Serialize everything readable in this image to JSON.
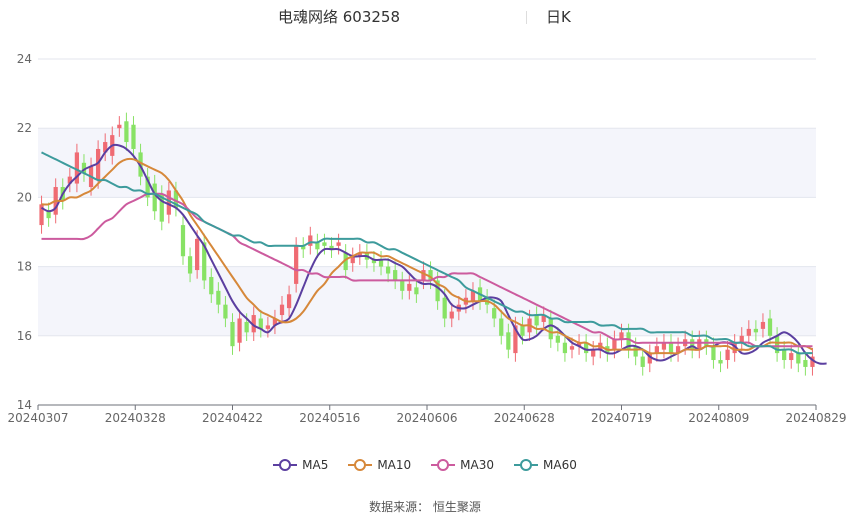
{
  "title": {
    "name": "电魂网络 603258",
    "period": "日K"
  },
  "source": "数据来源：  恒生聚源",
  "chart_data": {
    "type": "candlestick",
    "ylim": [
      14,
      24
    ],
    "yticks": [
      14,
      16,
      18,
      20,
      22,
      24
    ],
    "x_labels": [
      "20240307",
      "20240328",
      "20240422",
      "20240516",
      "20240606",
      "20240628",
      "20240719",
      "20240809",
      "20240829"
    ],
    "up_color": "#ef6b73",
    "down_color": "#88e265",
    "candles": [
      {
        "o": 19.2,
        "c": 19.8
      },
      {
        "o": 19.6,
        "c": 19.4
      },
      {
        "o": 19.5,
        "c": 20.3
      },
      {
        "o": 20.3,
        "c": 19.9
      },
      {
        "o": 20.4,
        "c": 20.6
      },
      {
        "o": 20.4,
        "c": 21.3
      },
      {
        "o": 21.0,
        "c": 20.7
      },
      {
        "o": 20.3,
        "c": 20.9
      },
      {
        "o": 20.5,
        "c": 21.4
      },
      {
        "o": 21.3,
        "c": 21.6
      },
      {
        "o": 21.2,
        "c": 21.8
      },
      {
        "o": 22.0,
        "c": 22.1
      },
      {
        "o": 22.2,
        "c": 21.6
      },
      {
        "o": 22.1,
        "c": 21.4
      },
      {
        "o": 21.3,
        "c": 20.6
      },
      {
        "o": 20.6,
        "c": 20.0
      },
      {
        "o": 20.4,
        "c": 19.6
      },
      {
        "o": 20.1,
        "c": 19.3
      },
      {
        "o": 19.5,
        "c": 20.2
      },
      {
        "o": 20.2,
        "c": 19.7
      },
      {
        "o": 19.2,
        "c": 18.3
      },
      {
        "o": 18.3,
        "c": 17.8
      },
      {
        "o": 17.9,
        "c": 18.8
      },
      {
        "o": 18.7,
        "c": 17.6
      },
      {
        "o": 17.7,
        "c": 17.2
      },
      {
        "o": 17.3,
        "c": 16.9
      },
      {
        "o": 16.9,
        "c": 16.5
      },
      {
        "o": 16.4,
        "c": 15.7
      },
      {
        "o": 15.8,
        "c": 16.5
      },
      {
        "o": 16.4,
        "c": 16.1
      },
      {
        "o": 16.1,
        "c": 16.6
      },
      {
        "o": 16.5,
        "c": 16.2
      },
      {
        "o": 16.2,
        "c": 16.3
      },
      {
        "o": 16.3,
        "c": 16.5
      },
      {
        "o": 16.6,
        "c": 16.9
      },
      {
        "o": 16.8,
        "c": 17.2
      },
      {
        "o": 17.5,
        "c": 18.6
      },
      {
        "o": 18.6,
        "c": 18.5
      },
      {
        "o": 18.6,
        "c": 18.9
      },
      {
        "o": 18.7,
        "c": 18.5
      },
      {
        "o": 18.7,
        "c": 18.6
      },
      {
        "o": 18.6,
        "c": 18.5
      },
      {
        "o": 18.6,
        "c": 18.7
      },
      {
        "o": 18.4,
        "c": 17.9
      },
      {
        "o": 18.1,
        "c": 18.3
      },
      {
        "o": 18.3,
        "c": 18.4
      },
      {
        "o": 18.4,
        "c": 18.2
      },
      {
        "o": 18.2,
        "c": 18.1
      },
      {
        "o": 18.2,
        "c": 18.0
      },
      {
        "o": 18.0,
        "c": 17.8
      },
      {
        "o": 17.9,
        "c": 17.6
      },
      {
        "o": 17.6,
        "c": 17.3
      },
      {
        "o": 17.3,
        "c": 17.5
      },
      {
        "o": 17.4,
        "c": 17.2
      },
      {
        "o": 17.6,
        "c": 17.9
      },
      {
        "o": 17.9,
        "c": 17.6
      },
      {
        "o": 17.6,
        "c": 17.0
      },
      {
        "o": 17.1,
        "c": 16.5
      },
      {
        "o": 16.5,
        "c": 16.7
      },
      {
        "o": 16.7,
        "c": 16.9
      },
      {
        "o": 16.9,
        "c": 17.1
      },
      {
        "o": 17.0,
        "c": 17.3
      },
      {
        "o": 17.4,
        "c": 17.0
      },
      {
        "o": 17.1,
        "c": 16.9
      },
      {
        "o": 16.8,
        "c": 16.5
      },
      {
        "o": 16.5,
        "c": 16.0
      },
      {
        "o": 16.1,
        "c": 15.6
      },
      {
        "o": 15.5,
        "c": 16.3
      },
      {
        "o": 16.3,
        "c": 16.0
      },
      {
        "o": 16.1,
        "c": 16.5
      },
      {
        "o": 16.6,
        "c": 16.3
      },
      {
        "o": 16.4,
        "c": 16.6
      },
      {
        "o": 16.5,
        "c": 15.9
      },
      {
        "o": 16.0,
        "c": 15.8
      },
      {
        "o": 15.8,
        "c": 15.5
      },
      {
        "o": 15.6,
        "c": 15.7
      },
      {
        "o": 15.7,
        "c": 15.8
      },
      {
        "o": 15.8,
        "c": 15.5
      },
      {
        "o": 15.4,
        "c": 15.6
      },
      {
        "o": 15.6,
        "c": 15.8
      },
      {
        "o": 15.7,
        "c": 15.5
      },
      {
        "o": 15.6,
        "c": 15.9
      },
      {
        "o": 15.9,
        "c": 16.1
      },
      {
        "o": 16.1,
        "c": 15.6
      },
      {
        "o": 15.7,
        "c": 15.4
      },
      {
        "o": 15.4,
        "c": 15.1
      },
      {
        "o": 15.2,
        "c": 15.5
      },
      {
        "o": 15.5,
        "c": 15.7
      },
      {
        "o": 15.6,
        "c": 15.8
      },
      {
        "o": 15.8,
        "c": 15.5
      },
      {
        "o": 15.5,
        "c": 15.7
      },
      {
        "o": 15.7,
        "c": 15.9
      },
      {
        "o": 15.9,
        "c": 15.6
      },
      {
        "o": 15.6,
        "c": 15.9
      },
      {
        "o": 15.9,
        "c": 15.7
      },
      {
        "o": 15.7,
        "c": 15.3
      },
      {
        "o": 15.3,
        "c": 15.2
      },
      {
        "o": 15.3,
        "c": 15.6
      },
      {
        "o": 15.5,
        "c": 15.8
      },
      {
        "o": 15.8,
        "c": 16.0
      },
      {
        "o": 16.0,
        "c": 16.2
      },
      {
        "o": 16.2,
        "c": 16.1
      },
      {
        "o": 16.2,
        "c": 16.4
      },
      {
        "o": 16.5,
        "c": 16.0
      },
      {
        "o": 16.0,
        "c": 15.5
      },
      {
        "o": 15.6,
        "c": 15.3
      },
      {
        "o": 15.3,
        "c": 15.5
      },
      {
        "o": 15.5,
        "c": 15.2
      },
      {
        "o": 15.3,
        "c": 15.1
      },
      {
        "o": 15.1,
        "c": 15.4
      }
    ],
    "series": [
      {
        "name": "MA5",
        "color": "#5b3fa0",
        "values": [
          19.7,
          19.6,
          19.7,
          20.1,
          20.4,
          20.6,
          20.8,
          20.9,
          21.0,
          21.3,
          21.5,
          21.5,
          21.4,
          21.2,
          20.9,
          20.5,
          20.1,
          19.9,
          19.8,
          19.7,
          19.5,
          19.2,
          18.9,
          18.6,
          18.2,
          17.8,
          17.4,
          17.0,
          16.7,
          16.5,
          16.3,
          16.2,
          16.1,
          16.3,
          16.4,
          16.5,
          16.9,
          17.4,
          17.9,
          18.3,
          18.5,
          18.5,
          18.5,
          18.4,
          18.3,
          18.3,
          18.3,
          18.2,
          18.2,
          18.2,
          18.1,
          18.0,
          17.8,
          17.6,
          17.5,
          17.5,
          17.4,
          17.2,
          16.9,
          16.8,
          16.8,
          16.9,
          17.0,
          17.1,
          17.1,
          17.0,
          16.6,
          16.2,
          15.9,
          15.9,
          16.0,
          16.2,
          16.3,
          16.2,
          16.0,
          15.8,
          15.7,
          15.6,
          15.6,
          15.6,
          15.5,
          15.5,
          15.6,
          15.7,
          15.7,
          15.6,
          15.4,
          15.3,
          15.3,
          15.4,
          15.5,
          15.6,
          15.7,
          15.6,
          15.7,
          15.7,
          15.8,
          15.8,
          15.7,
          15.5,
          15.5,
          15.6,
          15.8,
          15.9,
          16.0,
          16.1,
          16.0,
          15.8,
          15.5,
          15.3,
          15.2,
          15.2
        ]
      },
      {
        "name": "MA10",
        "color": "#d6883a",
        "values": [
          19.8,
          19.8,
          19.9,
          19.9,
          20.0,
          20.0,
          20.1,
          20.2,
          20.4,
          20.6,
          20.8,
          21.0,
          21.1,
          21.1,
          21.0,
          20.9,
          20.8,
          20.7,
          20.5,
          20.2,
          19.9,
          19.5,
          19.2,
          18.9,
          18.6,
          18.3,
          18.0,
          17.7,
          17.4,
          17.1,
          16.9,
          16.7,
          16.6,
          16.5,
          16.4,
          16.4,
          16.5,
          16.7,
          17.0,
          17.3,
          17.5,
          17.8,
          18.0,
          18.2,
          18.3,
          18.4,
          18.4,
          18.4,
          18.3,
          18.3,
          18.2,
          18.1,
          18.0,
          17.9,
          17.8,
          17.7,
          17.5,
          17.4,
          17.2,
          17.1,
          17.0,
          17.0,
          17.0,
          17.0,
          16.9,
          16.7,
          16.5,
          16.4,
          16.3,
          16.3,
          16.2,
          16.2,
          16.1,
          16.1,
          16.0,
          15.9,
          15.8,
          15.8,
          15.7,
          15.7,
          15.6,
          15.6,
          15.6,
          15.6,
          15.6,
          15.6,
          15.5,
          15.5,
          15.5,
          15.5,
          15.5,
          15.6,
          15.6,
          15.6,
          15.7,
          15.7,
          15.7,
          15.7,
          15.6,
          15.6,
          15.6,
          15.7,
          15.7,
          15.8,
          15.8,
          15.8,
          15.8,
          15.7,
          15.7,
          15.6
        ]
      },
      {
        "name": "MA30",
        "color": "#cc5b9e",
        "values": [
          18.8,
          18.8,
          18.8,
          18.8,
          18.8,
          18.8,
          18.8,
          18.9,
          19.1,
          19.3,
          19.4,
          19.6,
          19.8,
          19.9,
          20.0,
          20.1,
          20.1,
          20.1,
          20.0,
          19.9,
          19.8,
          19.6,
          19.4,
          19.3,
          19.2,
          19.1,
          19.0,
          18.9,
          18.7,
          18.6,
          18.5,
          18.4,
          18.3,
          18.2,
          18.1,
          18.0,
          17.9,
          17.9,
          17.8,
          17.8,
          17.7,
          17.7,
          17.7,
          17.7,
          17.6,
          17.6,
          17.6,
          17.6,
          17.6,
          17.6,
          17.6,
          17.6,
          17.6,
          17.6,
          17.6,
          17.6,
          17.7,
          17.7,
          17.8,
          17.8,
          17.8,
          17.8,
          17.7,
          17.6,
          17.5,
          17.4,
          17.3,
          17.2,
          17.1,
          17.0,
          16.9,
          16.8,
          16.7,
          16.6,
          16.5,
          16.4,
          16.3,
          16.2,
          16.1,
          16.1,
          16.0,
          15.9,
          15.9,
          15.9,
          15.8,
          15.8,
          15.8,
          15.8,
          15.8,
          15.8,
          15.8,
          15.8,
          15.8,
          15.8,
          15.8,
          15.8,
          15.8,
          15.8,
          15.8,
          15.8,
          15.8,
          15.7,
          15.7,
          15.7,
          15.7,
          15.7,
          15.7,
          15.7,
          15.7,
          15.7
        ]
      },
      {
        "name": "MA60",
        "color": "#3d9b9c",
        "values": [
          21.3,
          21.2,
          21.1,
          21.0,
          20.9,
          20.8,
          20.7,
          20.6,
          20.5,
          20.5,
          20.4,
          20.3,
          20.3,
          20.2,
          20.2,
          20.1,
          20.1,
          20.0,
          19.9,
          19.8,
          19.7,
          19.6,
          19.5,
          19.3,
          19.2,
          19.1,
          19.0,
          18.9,
          18.9,
          18.8,
          18.7,
          18.7,
          18.6,
          18.6,
          18.6,
          18.6,
          18.6,
          18.6,
          18.7,
          18.7,
          18.8,
          18.8,
          18.8,
          18.8,
          18.8,
          18.8,
          18.7,
          18.7,
          18.6,
          18.5,
          18.5,
          18.4,
          18.3,
          18.2,
          18.1,
          18.0,
          17.9,
          17.8,
          17.7,
          17.6,
          17.4,
          17.3,
          17.2,
          17.1,
          17.0,
          16.9,
          16.8,
          16.7,
          16.7,
          16.6,
          16.6,
          16.6,
          16.5,
          16.5,
          16.4,
          16.4,
          16.4,
          16.4,
          16.4,
          16.3,
          16.3,
          16.3,
          16.2,
          16.2,
          16.2,
          16.2,
          16.1,
          16.1,
          16.1,
          16.1,
          16.1,
          16.1,
          16.0,
          16.0,
          16.0,
          15.9,
          15.9,
          15.9,
          15.8,
          15.8,
          15.7,
          15.7,
          15.7,
          15.7,
          15.6,
          15.6,
          15.6,
          15.5,
          15.5,
          15.5
        ]
      }
    ]
  }
}
